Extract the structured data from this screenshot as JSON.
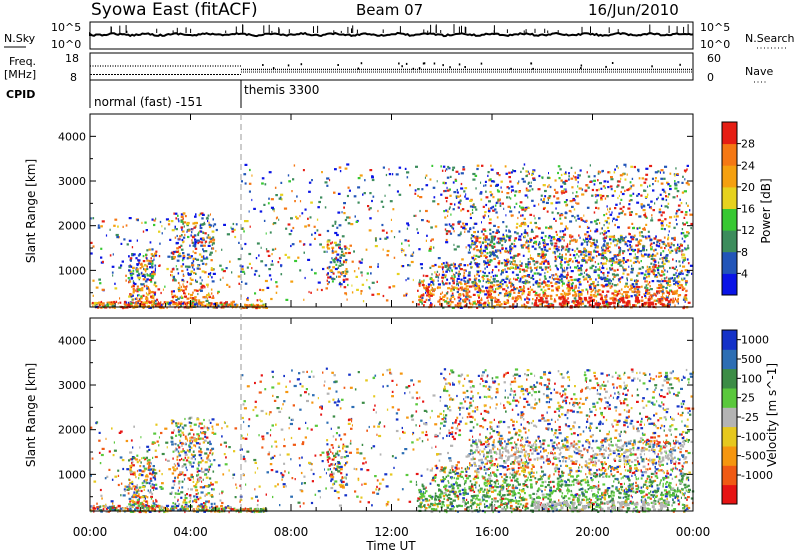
{
  "header": {
    "radar": "Syowa East (fitACF)",
    "beam": "Beam 07",
    "date": "16/Jun/2010"
  },
  "top_panels": {
    "nsky_label": "N.Sky",
    "nsky_ticks": [
      "10^5",
      "10^0"
    ],
    "nsearch_label": "N.Search",
    "nsearch_ticks": [
      "10^5",
      "10^0"
    ],
    "freq_label": "Freq.",
    "freq_unit": "[MHz]",
    "freq_ticks": [
      "18",
      "8"
    ],
    "nave_label": "Nave",
    "nave_ticks": [
      "60",
      "0"
    ],
    "cpid_label": "CPID",
    "cpid_modes": [
      {
        "name": "normal (fast) -151",
        "start_hour": 0,
        "end_hour": 6
      },
      {
        "name": "themis 3300",
        "start_hour": 6,
        "end_hour": 24
      }
    ]
  },
  "chart_data": [
    {
      "type": "heatmap",
      "name": "power-panel",
      "x_range_hours": [
        0,
        24
      ],
      "ylabel": "Slant Range [km]",
      "ylim": [
        180,
        4500
      ],
      "y_ticks": [
        1000,
        2000,
        3000,
        4000
      ],
      "colorbar_label": "Power [dB]",
      "colorbar_levels": [
        4,
        8,
        12,
        16,
        20,
        24,
        28
      ],
      "colorbar_colors": [
        "#0a14e6",
        "#2255b8",
        "#3c8c5c",
        "#37c832",
        "#e6d21e",
        "#f5a00f",
        "#f57814",
        "#e61e14"
      ]
    },
    {
      "type": "heatmap",
      "name": "velocity-panel",
      "x_range_hours": [
        0,
        24
      ],
      "ylabel": "Slant Range [km]",
      "ylim": [
        180,
        4500
      ],
      "y_ticks": [
        1000,
        2000,
        3000,
        4000
      ],
      "colorbar_label": "Velocity [m s^-1]",
      "colorbar_levels": [
        1000,
        500,
        100,
        25,
        -25,
        -100,
        -500,
        -1000
      ],
      "colorbar_colors": [
        "#1432c8",
        "#2d6eb4",
        "#3c8c46",
        "#5ac83c",
        "#b4b4b4",
        "#e6c81e",
        "#f5960f",
        "#f05a14",
        "#e61414"
      ]
    }
  ],
  "x_axis": {
    "ticks": [
      "00:00",
      "04:00",
      "08:00",
      "12:00",
      "16:00",
      "20:00",
      "00:00"
    ],
    "label": "Time UT"
  }
}
